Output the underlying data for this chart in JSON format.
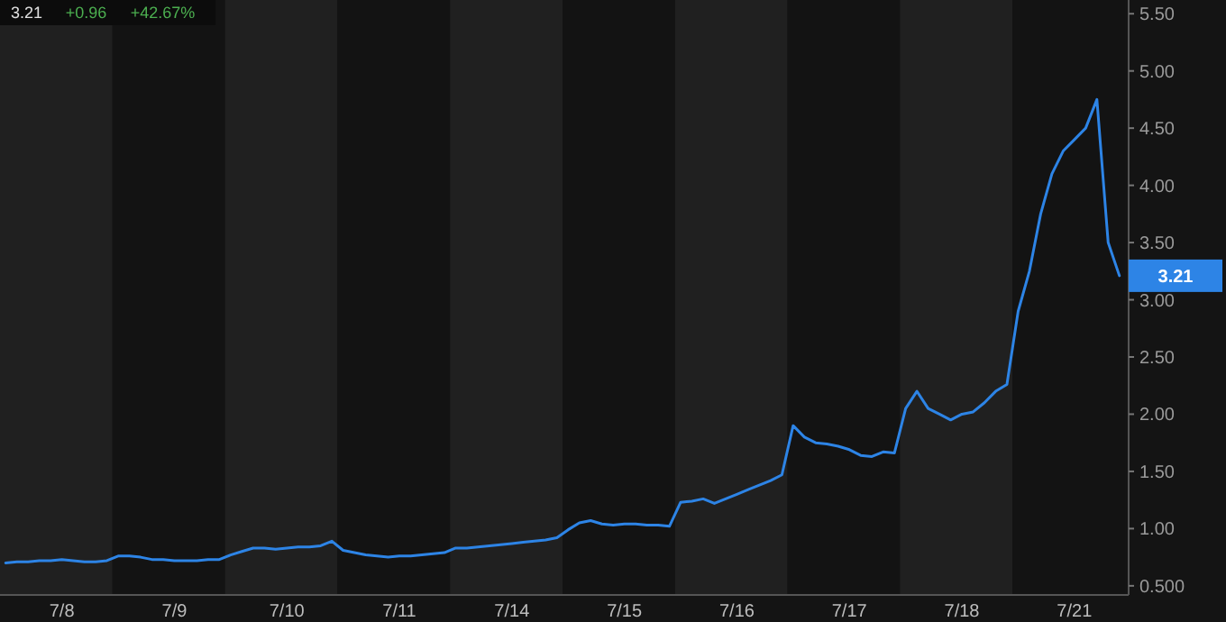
{
  "chart_data": {
    "type": "line",
    "categories": [
      null,
      null,
      null,
      null,
      null,
      "7/8",
      null,
      null,
      null,
      null,
      null,
      null,
      null,
      null,
      null,
      "7/9",
      null,
      null,
      null,
      null,
      null,
      null,
      null,
      null,
      null,
      "7/10",
      null,
      null,
      null,
      null,
      null,
      null,
      null,
      null,
      null,
      "7/11",
      null,
      null,
      null,
      null,
      null,
      null,
      null,
      null,
      null,
      "7/14",
      null,
      null,
      null,
      null,
      null,
      null,
      null,
      null,
      null,
      "7/15",
      null,
      null,
      null,
      null,
      null,
      null,
      null,
      null,
      null,
      "7/16",
      null,
      null,
      null,
      null,
      null,
      null,
      null,
      null,
      null,
      "7/17",
      null,
      null,
      null,
      null,
      null,
      null,
      null,
      null,
      null,
      "7/18",
      null,
      null,
      null,
      null,
      null,
      null,
      null,
      null,
      null,
      "7/21",
      null,
      null,
      null,
      null
    ],
    "series": [
      {
        "color": "#2d84e6",
        "values": [
          0.7,
          0.71,
          0.71,
          0.72,
          0.72,
          0.73,
          0.72,
          0.71,
          0.71,
          0.72,
          0.76,
          0.76,
          0.75,
          0.73,
          0.73,
          0.72,
          0.72,
          0.72,
          0.73,
          0.73,
          0.77,
          0.8,
          0.83,
          0.83,
          0.82,
          0.83,
          0.84,
          0.84,
          0.85,
          0.89,
          0.81,
          0.79,
          0.77,
          0.76,
          0.75,
          0.76,
          0.76,
          0.77,
          0.78,
          0.79,
          0.83,
          0.83,
          0.84,
          0.85,
          0.86,
          0.87,
          0.88,
          0.89,
          0.9,
          0.92,
          0.99,
          1.05,
          1.07,
          1.04,
          1.03,
          1.04,
          1.04,
          1.03,
          1.03,
          1.02,
          1.23,
          1.24,
          1.26,
          1.22,
          1.26,
          1.3,
          1.34,
          1.38,
          1.42,
          1.47,
          1.9,
          1.8,
          1.75,
          1.74,
          1.72,
          1.69,
          1.64,
          1.63,
          1.67,
          1.66,
          2.05,
          2.2,
          2.05,
          2.0,
          1.95,
          2.0,
          2.02,
          2.1,
          2.2,
          2.26,
          2.9,
          3.25,
          3.75,
          4.1,
          4.3,
          4.4,
          4.5,
          4.75,
          3.5,
          3.21
        ]
      }
    ],
    "ylim": [
      0.42,
      5.62
    ],
    "yticks": [
      {
        "value": 0.5,
        "label": "0.500"
      },
      {
        "value": 1,
        "label": "1.00"
      },
      {
        "value": 1.5,
        "label": "1.50"
      },
      {
        "value": 2,
        "label": "2.00"
      },
      {
        "value": 2.5,
        "label": "2.50"
      },
      {
        "value": 3,
        "label": "3.00"
      },
      {
        "value": 3.5,
        "label": "3.50"
      },
      {
        "value": 4,
        "label": "4.00"
      },
      {
        "value": 4.5,
        "label": "4.50"
      },
      {
        "value": 5,
        "label": "5.00"
      },
      {
        "value": 5.5,
        "label": "5.50"
      }
    ],
    "annotations": [
      "3.21",
      "+0.96",
      "+42.67%",
      "3.21"
    ],
    "grid": false,
    "marker": "none",
    "line_style": "solid"
  }
}
